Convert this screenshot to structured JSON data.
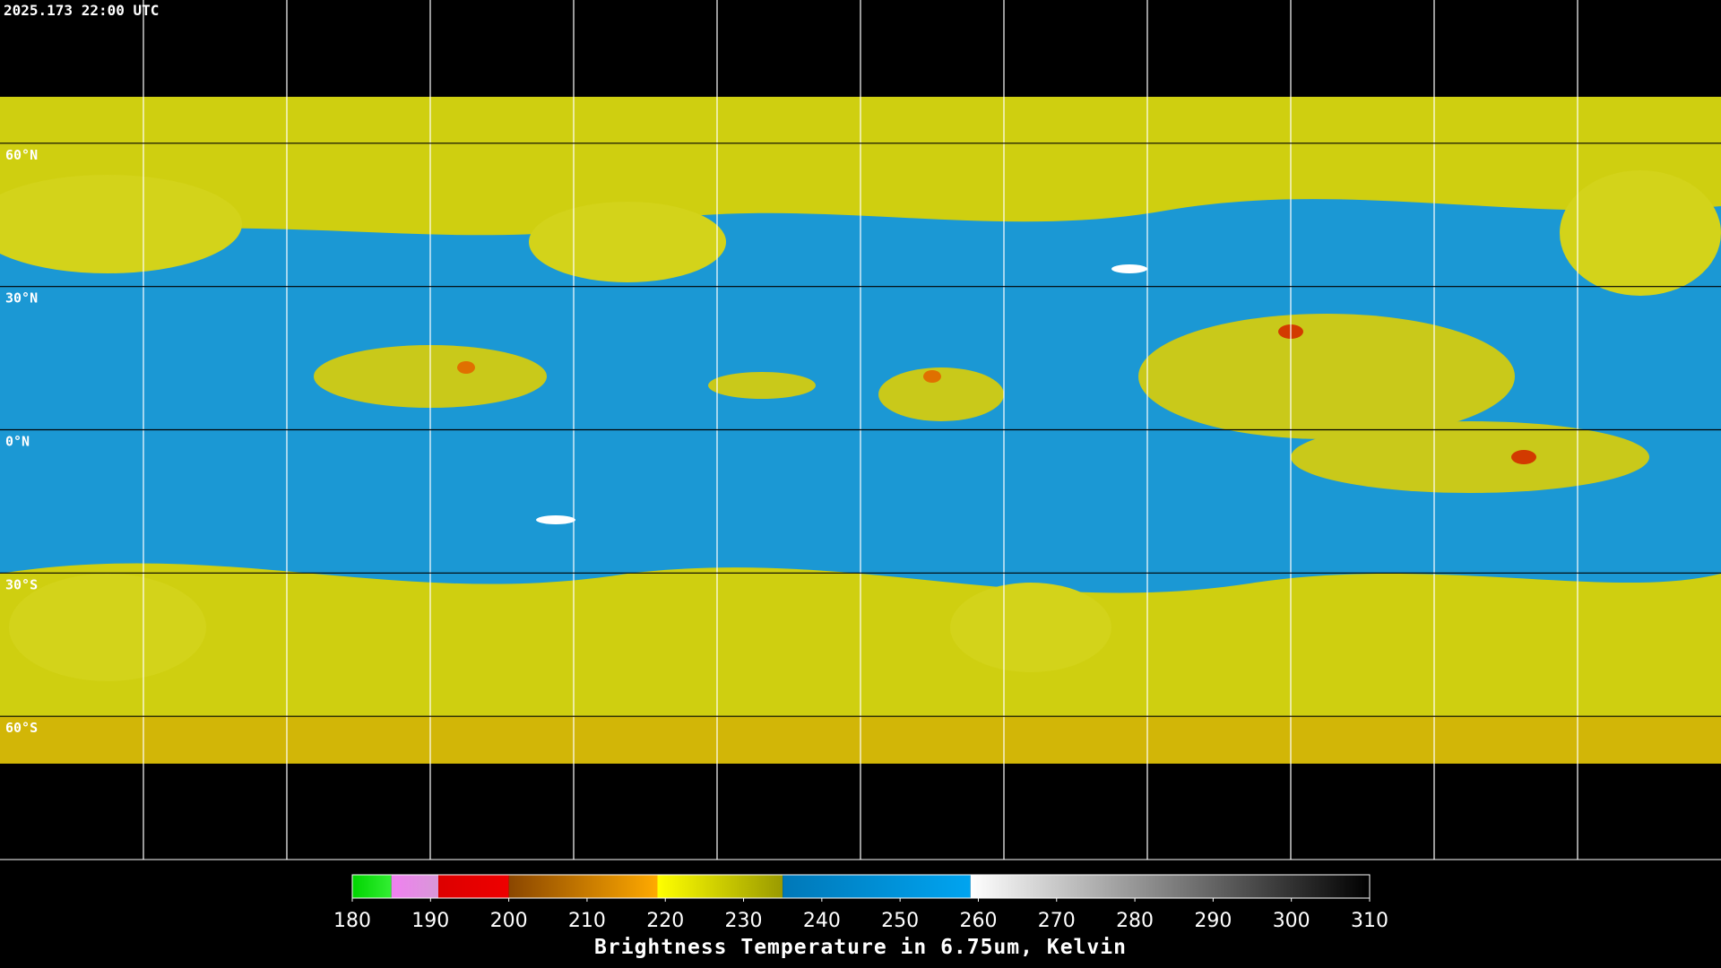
{
  "header": {
    "title": "2025.173 22:00 UTC"
  },
  "map": {
    "lonlim": [
      -180,
      180
    ],
    "latlim": [
      90,
      -90
    ],
    "lon_grid": [
      -150,
      -120,
      -90,
      -60,
      -30,
      0,
      30,
      60,
      90,
      120,
      150
    ],
    "lat_grid": [
      {
        "value": 60,
        "label": "60°N"
      },
      {
        "value": 30,
        "label": "30°N"
      },
      {
        "value": 0,
        "label": "0°N"
      },
      {
        "value": -30,
        "label": "30°S"
      },
      {
        "value": -60,
        "label": "60°S"
      }
    ]
  },
  "colorbar": {
    "label": "Brightness Temperature in 6.75um, Kelvin",
    "range": [
      180,
      310
    ],
    "ticks": [
      180,
      190,
      200,
      210,
      220,
      230,
      240,
      250,
      260,
      270,
      280,
      290,
      300,
      310
    ],
    "segments": [
      {
        "from": 180,
        "to": 185,
        "colors": [
          "#00d400",
          "#33ee33"
        ]
      },
      {
        "from": 185,
        "to": 191,
        "colors": [
          "#f080f0",
          "#d898d8"
        ]
      },
      {
        "from": 191,
        "to": 200,
        "colors": [
          "#dd0000",
          "#ee0000"
        ]
      },
      {
        "from": 200,
        "to": 219,
        "colors": [
          "#8a4600",
          "#ffaa00"
        ]
      },
      {
        "from": 219,
        "to": 235,
        "colors": [
          "#ffff00",
          "#9a9a00"
        ]
      },
      {
        "from": 235,
        "to": 259,
        "colors": [
          "#0078b8",
          "#00a4f0"
        ]
      },
      {
        "from": 259,
        "to": 310,
        "colors": [
          "#ffffff",
          "#000000"
        ]
      }
    ]
  }
}
